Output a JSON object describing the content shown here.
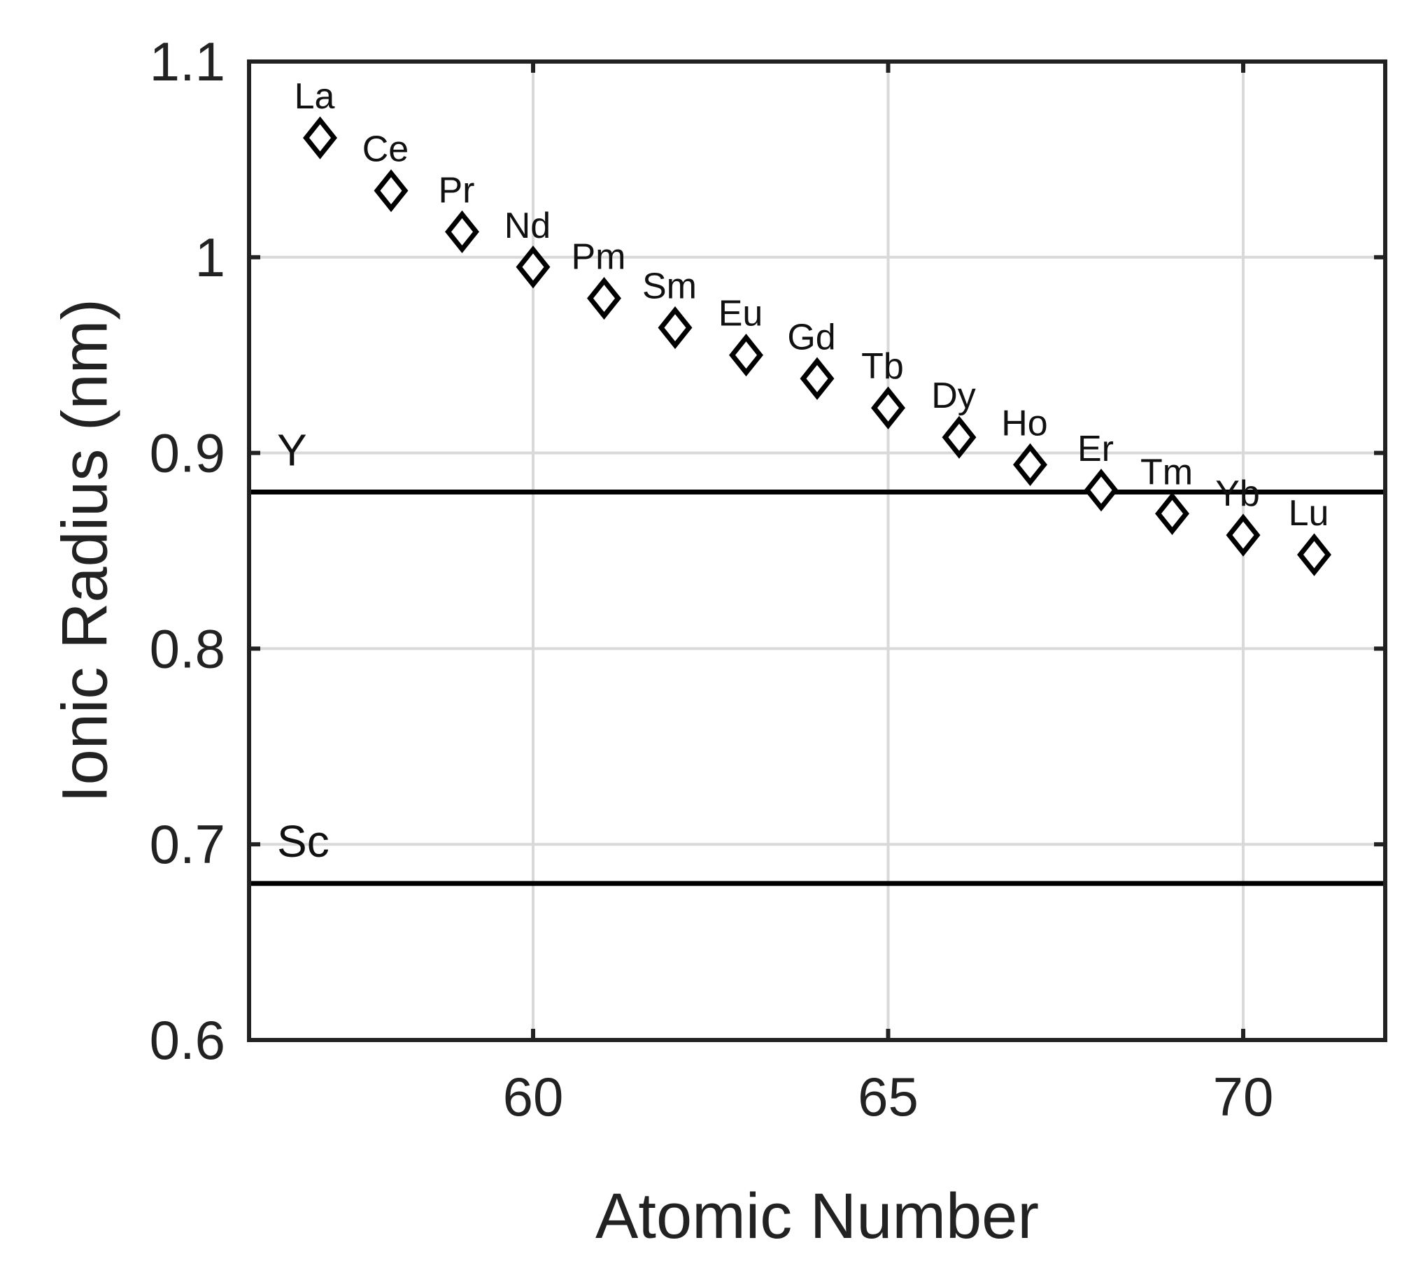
{
  "chart_data": {
    "type": "scatter",
    "title": "",
    "xlabel": "Atomic Number",
    "ylabel": "Ionic Radius (nm)",
    "xlim": [
      56,
      72
    ],
    "ylim": [
      0.6,
      1.1
    ],
    "xticks": [
      60,
      65,
      70
    ],
    "yticks": [
      0.6,
      0.7,
      0.8,
      0.9,
      1,
      1.1
    ],
    "xtick_labels": [
      "60",
      "65",
      "70"
    ],
    "ytick_labels": [
      "0.6",
      "0.7",
      "0.8",
      "0.9",
      "1",
      "1.1"
    ],
    "grid": true,
    "marker": "diamond-open",
    "colors": {
      "marker": "#000000",
      "grid": "#d9d9d9",
      "axis": "#222222",
      "reference_line": "#000000"
    },
    "points": [
      {
        "label": "La",
        "x": 57,
        "y": 1.061
      },
      {
        "label": "Ce",
        "x": 58,
        "y": 1.034
      },
      {
        "label": "Pr",
        "x": 59,
        "y": 1.013
      },
      {
        "label": "Nd",
        "x": 60,
        "y": 0.995
      },
      {
        "label": "Pm",
        "x": 61,
        "y": 0.979
      },
      {
        "label": "Sm",
        "x": 62,
        "y": 0.964
      },
      {
        "label": "Eu",
        "x": 63,
        "y": 0.95
      },
      {
        "label": "Gd",
        "x": 64,
        "y": 0.938
      },
      {
        "label": "Tb",
        "x": 65,
        "y": 0.923
      },
      {
        "label": "Dy",
        "x": 66,
        "y": 0.908
      },
      {
        "label": "Ho",
        "x": 67,
        "y": 0.894
      },
      {
        "label": "Er",
        "x": 68,
        "y": 0.881
      },
      {
        "label": "Tm",
        "x": 69,
        "y": 0.869
      },
      {
        "label": "Yb",
        "x": 70,
        "y": 0.858
      },
      {
        "label": "Lu",
        "x": 71,
        "y": 0.848
      }
    ],
    "reference_lines": [
      {
        "label": "Y",
        "y": 0.88
      },
      {
        "label": "Sc",
        "y": 0.68
      }
    ]
  }
}
